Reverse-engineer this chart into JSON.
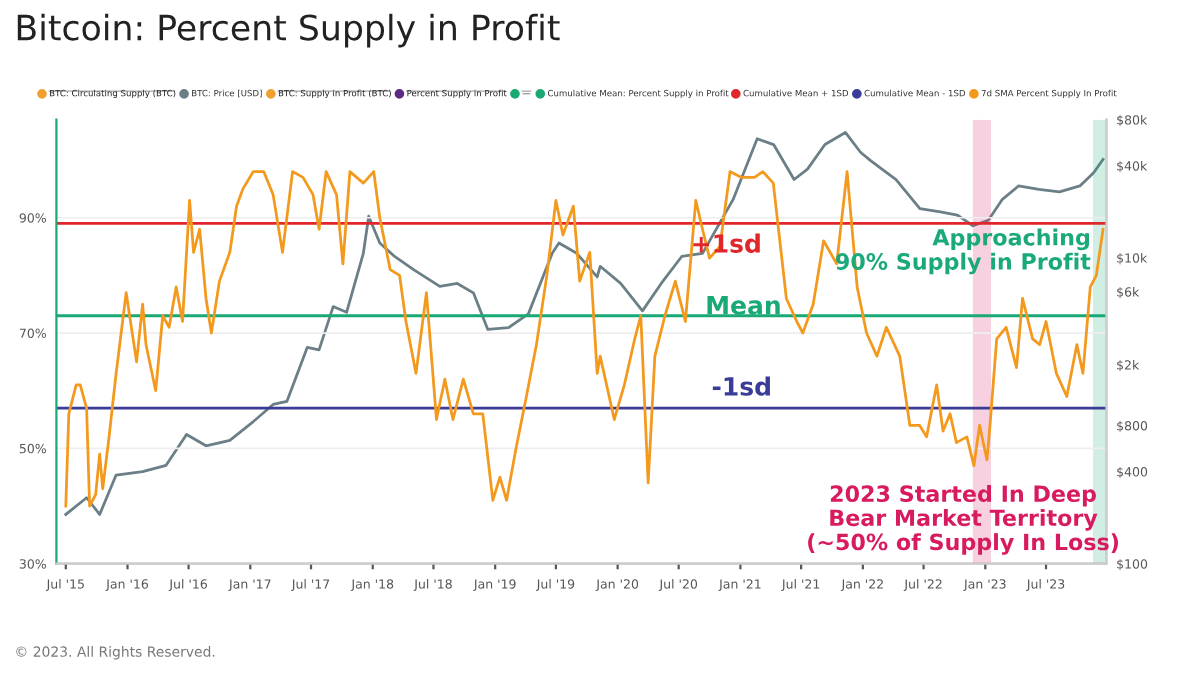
{
  "chart_data": {
    "type": "line",
    "title": "Bitcoin: Percent Supply in Profit",
    "xlim": [
      "2015-06-03",
      "2023-12-28"
    ],
    "xticks": [
      {
        "value": "2015-07-01",
        "label": "Jul '15"
      },
      {
        "value": "2016-01-01",
        "label": "Jan '16"
      },
      {
        "value": "2016-07-01",
        "label": "Jul '16"
      },
      {
        "value": "2017-01-01",
        "label": "Jan '17"
      },
      {
        "value": "2017-07-01",
        "label": "Jul '17"
      },
      {
        "value": "2018-01-01",
        "label": "Jan '18"
      },
      {
        "value": "2018-07-01",
        "label": "Jul '18"
      },
      {
        "value": "2019-01-01",
        "label": "Jan '19"
      },
      {
        "value": "2019-07-01",
        "label": "Jul '19"
      },
      {
        "value": "2020-01-01",
        "label": "Jan '20"
      },
      {
        "value": "2020-07-01",
        "label": "Jul '20"
      },
      {
        "value": "2021-01-01",
        "label": "Jan '21"
      },
      {
        "value": "2021-07-01",
        "label": "Jul '21"
      },
      {
        "value": "2022-01-01",
        "label": "Jan '22"
      },
      {
        "value": "2022-07-01",
        "label": "Jul '22"
      },
      {
        "value": "2023-01-01",
        "label": "Jan '23"
      },
      {
        "value": "2023-07-01",
        "label": "Jul '23"
      }
    ],
    "ylim": [
      30,
      107
    ],
    "yticks": [
      {
        "value": 30,
        "label": "30%"
      },
      {
        "value": 50,
        "label": "50%"
      },
      {
        "value": 70,
        "label": "70%"
      },
      {
        "value": 90,
        "label": "90%"
      }
    ],
    "y2lim": [
      100,
      80000
    ],
    "log": "y2",
    "y2ticks": [
      {
        "value": 100,
        "label": "$100"
      },
      {
        "value": 400,
        "label": "$400"
      },
      {
        "value": 800,
        "label": "$800"
      },
      {
        "value": 2000,
        "label": "$2k"
      },
      {
        "value": 6000,
        "label": "$6k"
      },
      {
        "value": 10000,
        "label": "$10k"
      },
      {
        "value": 40000,
        "label": "$40k"
      },
      {
        "value": 80000,
        "label": "$80k"
      }
    ],
    "grid": "y",
    "legend": "top",
    "line_style": "solid",
    "series": [
      {
        "name": "BTC: Circulating Supply (BTC)",
        "color": "#f0a030"
      },
      {
        "name": "BTC: Price [USD]",
        "color": "#6b7f86",
        "axis": "y2",
        "x": [
          "2015-07-01",
          "2015-09-01",
          "2015-10-10",
          "2015-11-28",
          "2016-02-15",
          "2016-04-25",
          "2016-06-25",
          "2016-08-22",
          "2016-11-01",
          "2017-01-10",
          "2017-03-10",
          "2017-04-20",
          "2017-06-20",
          "2017-07-25",
          "2017-09-05",
          "2017-10-15",
          "2017-12-04",
          "2017-12-20",
          "2018-01-22",
          "2018-03-05",
          "2018-05-05",
          "2018-07-20",
          "2018-09-10",
          "2018-10-28",
          "2018-12-10",
          "2019-02-10",
          "2019-04-10",
          "2019-06-20",
          "2019-07-10",
          "2019-09-01",
          "2019-11-01",
          "2019-11-10",
          "2020-01-10",
          "2020-03-15",
          "2020-05-10",
          "2020-07-10",
          "2020-09-10",
          "2020-12-10",
          "2021-02-20",
          "2021-04-10",
          "2021-06-10",
          "2021-07-20",
          "2021-09-10",
          "2021-11-10",
          "2021-12-25",
          "2022-01-25",
          "2022-04-10",
          "2022-06-20",
          "2022-08-20",
          "2022-10-10",
          "2022-11-25",
          "2023-01-10",
          "2023-02-20",
          "2023-04-10",
          "2023-06-10",
          "2023-08-10",
          "2023-10-10",
          "2023-11-20",
          "2023-12-18"
        ],
        "values": [
          210,
          270,
          210,
          380,
          400,
          440,
          700,
          590,
          640,
          850,
          1100,
          1150,
          2600,
          2500,
          4800,
          4400,
          10700,
          18700,
          12500,
          10300,
          8300,
          6500,
          6800,
          5900,
          3400,
          3500,
          4300,
          10700,
          12500,
          10700,
          7500,
          8800,
          6800,
          4500,
          6800,
          10200,
          10700,
          24000,
          60000,
          55000,
          32500,
          38000,
          55000,
          66000,
          49000,
          43000,
          32500,
          21000,
          20000,
          19000,
          16200,
          17600,
          24000,
          29500,
          28000,
          27000,
          29500,
          36000,
          44000
        ]
      },
      {
        "name": "BTC: Supply in Profit (BTC)",
        "color": "#f0a030"
      },
      {
        "name": "Percent Supply in Profit",
        "color": "#5b2a86"
      },
      {
        "name": "—",
        "color": "#19a974"
      },
      {
        "name": "Cumulative Mean: Percent Supply in Profit",
        "color": "#19a974",
        "x": [
          "2015-06-03",
          "2023-12-28"
        ],
        "values": [
          73,
          73
        ]
      },
      {
        "name": "Cumulative Mean + 1SD",
        "color": "#e0262b",
        "x": [
          "2015-06-03",
          "2023-12-28"
        ],
        "values": [
          89,
          89
        ]
      },
      {
        "name": "Cumulative Mean - 1SD",
        "color": "#3b3b98",
        "x": [
          "2015-06-03",
          "2023-12-28"
        ],
        "values": [
          57,
          57
        ]
      },
      {
        "name": "7d SMA Percent Supply In Profit",
        "color": "#f39a1e",
        "x": [
          "2015-07-01",
          "2015-07-10",
          "2015-08-01",
          "2015-08-13",
          "2015-09-01",
          "2015-09-10",
          "2015-09-28",
          "2015-10-10",
          "2015-10-19",
          "2015-11-07",
          "2015-11-28",
          "2015-12-28",
          "2016-01-28",
          "2016-02-15",
          "2016-02-25",
          "2016-03-25",
          "2016-04-15",
          "2016-05-04",
          "2016-05-25",
          "2016-06-13",
          "2016-07-04",
          "2016-07-16",
          "2016-08-03",
          "2016-08-22",
          "2016-09-07",
          "2016-10-01",
          "2016-11-01",
          "2016-11-21",
          "2016-12-10",
          "2017-01-10",
          "2017-02-10",
          "2017-03-10",
          "2017-04-07",
          "2017-05-07",
          "2017-06-07",
          "2017-07-07",
          "2017-07-25",
          "2017-08-15",
          "2017-09-15",
          "2017-10-04",
          "2017-10-25",
          "2017-12-04",
          "2018-01-04",
          "2018-01-22",
          "2018-02-22",
          "2018-03-22",
          "2018-04-10",
          "2018-05-10",
          "2018-06-10",
          "2018-07-10",
          "2018-08-04",
          "2018-08-28",
          "2018-09-28",
          "2018-10-28",
          "2018-11-25",
          "2018-12-25",
          "2019-01-15",
          "2019-02-04",
          "2019-03-04",
          "2019-04-04",
          "2019-05-04",
          "2019-06-04",
          "2019-07-01",
          "2019-07-22",
          "2019-08-22",
          "2019-09-10",
          "2019-10-10",
          "2019-11-01",
          "2019-11-10",
          "2019-12-22",
          "2020-01-21",
          "2020-02-21",
          "2020-03-10",
          "2020-04-01",
          "2020-04-21",
          "2020-05-21",
          "2020-06-21",
          "2020-07-21",
          "2020-08-21",
          "2020-09-10",
          "2020-10-01",
          "2020-11-01",
          "2020-12-01",
          "2021-01-03",
          "2021-02-12",
          "2021-03-09",
          "2021-04-09",
          "2021-05-18",
          "2021-06-18",
          "2021-07-06",
          "2021-08-06",
          "2021-09-06",
          "2021-10-15",
          "2021-11-15",
          "2021-12-15",
          "2022-01-12",
          "2022-02-12",
          "2022-03-12",
          "2022-04-21",
          "2022-05-21",
          "2022-06-19",
          "2022-07-10",
          "2022-08-09",
          "2022-08-28",
          "2022-09-18",
          "2022-10-07",
          "2022-11-07",
          "2022-11-28",
          "2022-12-15",
          "2023-01-06",
          "2023-01-15",
          "2023-02-04",
          "2023-03-04",
          "2023-04-04",
          "2023-04-22",
          "2023-05-22",
          "2023-06-12",
          "2023-07-01",
          "2023-08-01",
          "2023-09-01",
          "2023-10-01",
          "2023-10-19",
          "2023-11-10",
          "2023-11-28",
          "2023-12-18"
        ],
        "values": [
          40,
          56,
          61,
          61,
          57,
          40,
          42,
          49,
          43,
          52,
          63,
          77,
          65,
          75,
          68,
          60,
          73,
          71,
          78,
          72,
          93,
          84,
          88,
          76,
          70,
          79,
          84,
          92,
          95,
          98,
          98,
          94,
          84,
          98,
          97,
          94,
          88,
          98,
          94,
          82,
          98,
          96,
          98,
          90,
          81,
          80,
          72,
          63,
          77,
          55,
          62,
          55,
          62,
          56,
          56,
          41,
          45,
          41,
          50,
          59,
          68,
          80,
          93,
          87,
          92,
          79,
          84,
          63,
          66,
          55,
          61,
          69,
          73,
          44,
          66,
          73,
          79,
          72,
          93,
          88,
          83,
          85,
          98,
          97,
          97,
          98,
          96,
          76,
          72,
          70,
          75,
          86,
          82,
          98,
          78,
          70,
          66,
          71,
          66,
          54,
          54,
          52,
          61,
          53,
          56,
          51,
          52,
          47,
          54,
          48,
          54,
          69,
          71,
          64,
          76,
          69,
          68,
          72,
          63,
          59,
          68,
          63,
          78,
          80,
          88
        ]
      }
    ],
    "annotations": [
      {
        "text": "+1sd",
        "x": "2020-11-20",
        "y": 89
      },
      {
        "text": "Mean",
        "x": "2021-01-10",
        "y": 73
      },
      {
        "text": "-1sd",
        "x": "2021-01-05",
        "y": 57
      },
      "© 2023. All Rights Reserved."
    ],
    "bands": [
      {
        "axis": "x",
        "from": "2022-11-25",
        "to": "2023-01-18",
        "color": "#d81b60",
        "label": "2023 Started In Deep\nBear Market Territory\n(~50% of Supply In Loss)"
      },
      {
        "axis": "x",
        "from": "2023-11-18",
        "to": "2023-12-24",
        "color": "#1aaa7a",
        "label": "Approaching\n90% Supply in Profit"
      }
    ]
  }
}
